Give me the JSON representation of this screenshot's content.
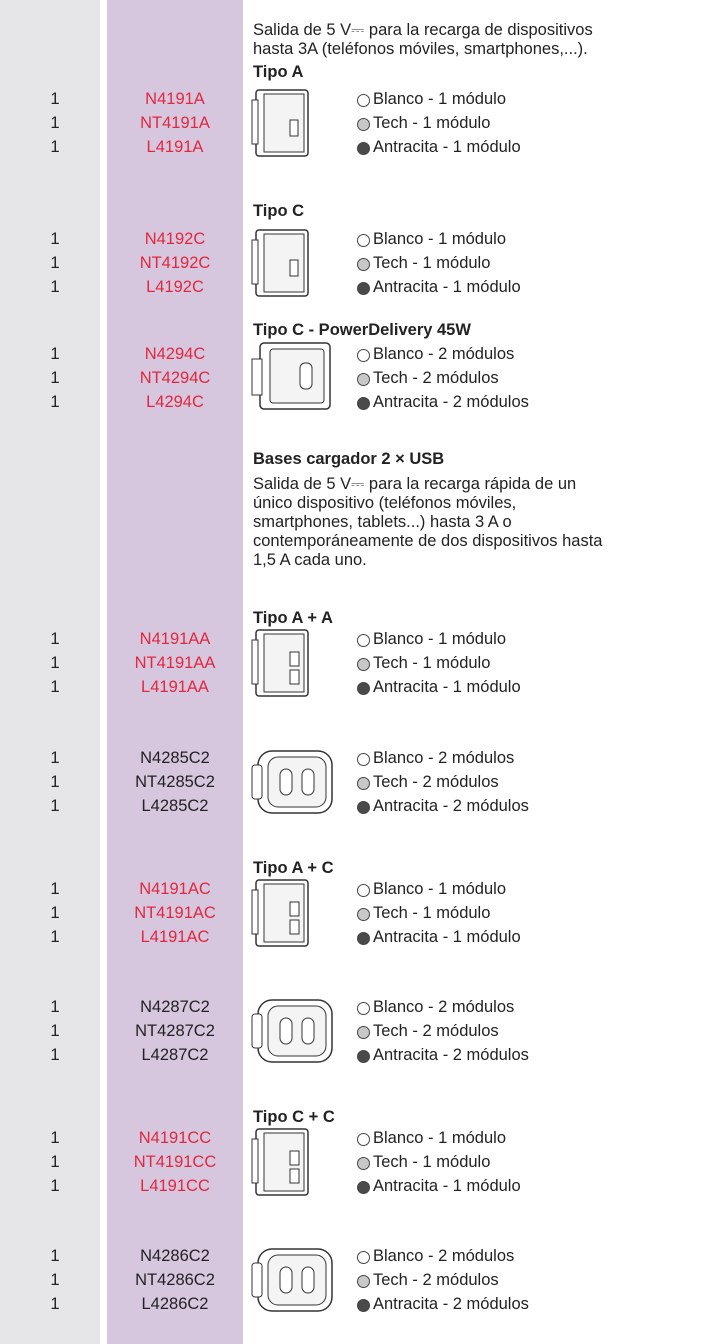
{
  "intro": [
    "Salida de 5 V⎓ para la recarga de dispositivos",
    "hasta 3A (teléfonos móviles, smartphones,...)."
  ],
  "sections": [
    {
      "heading": "Tipo A",
      "code_color": "#e2273f",
      "items": [
        {
          "qty": "1",
          "code": "N4191A",
          "label": "Blanco - 1 módulo"
        },
        {
          "qty": "1",
          "code": "NT4191A",
          "label": "Tech - 1 módulo"
        },
        {
          "qty": "1",
          "code": "L4191A",
          "label": "Antracita - 1 módulo"
        }
      ]
    },
    {
      "heading": "Tipo C",
      "code_color": "#e2273f",
      "items": [
        {
          "qty": "1",
          "code": "N4192C",
          "label": "Blanco - 1 módulo"
        },
        {
          "qty": "1",
          "code": "NT4192C",
          "label": "Tech - 1 módulo"
        },
        {
          "qty": "1",
          "code": "L4192C",
          "label": "Antracita - 1 módulo"
        }
      ]
    },
    {
      "heading": "Tipo C - PowerDelivery 45W",
      "code_color": "#e2273f",
      "items": [
        {
          "qty": "1",
          "code": "N4294C",
          "label": "Blanco - 2 módulos"
        },
        {
          "qty": "1",
          "code": "NT4294C",
          "label": "Tech - 2 módulos"
        },
        {
          "qty": "1",
          "code": "L4294C",
          "label": "Antracita - 2 módulos"
        }
      ]
    },
    {
      "heading": "Bases cargador 2 × USB",
      "note": [
        "Salida de 5 V⎓ para la recarga rápida de un",
        "único dispositivo (teléfonos móviles,",
        "smartphones, tablets...) hasta 3 A o",
        "contemporáneamente de dos dispositivos hasta",
        "1,5 A cada uno."
      ]
    },
    {
      "heading": "Tipo A + A",
      "code_color": "#e2273f",
      "items": [
        {
          "qty": "1",
          "code": "N4191AA",
          "label": "Blanco - 1 módulo"
        },
        {
          "qty": "1",
          "code": "NT4191AA",
          "label": "Tech - 1 módulo"
        },
        {
          "qty": "1",
          "code": "L4191AA",
          "label": "Antracita - 1 módulo"
        }
      ]
    },
    {
      "code_color": "#222222",
      "items": [
        {
          "qty": "1",
          "code": "N4285C2",
          "label": "Blanco - 2 módulos"
        },
        {
          "qty": "1",
          "code": "NT4285C2",
          "label": "Tech - 2 módulos"
        },
        {
          "qty": "1",
          "code": "L4285C2",
          "label": "Antracita - 2 módulos"
        }
      ]
    },
    {
      "heading": "Tipo A + C",
      "code_color": "#e2273f",
      "items": [
        {
          "qty": "1",
          "code": "N4191AC",
          "label": "Blanco - 1 módulo"
        },
        {
          "qty": "1",
          "code": "NT4191AC",
          "label": "Tech - 1 módulo"
        },
        {
          "qty": "1",
          "code": "L4191AC",
          "label": "Antracita - 1 módulo"
        }
      ]
    },
    {
      "code_color": "#222222",
      "items": [
        {
          "qty": "1",
          "code": "N4287C2",
          "label": "Blanco - 2 módulos"
        },
        {
          "qty": "1",
          "code": "NT4287C2",
          "label": "Tech - 2 módulos"
        },
        {
          "qty": "1",
          "code": "L4287C2",
          "label": "Antracita - 2 módulos"
        }
      ]
    },
    {
      "heading": "Tipo C + C",
      "code_color": "#e2273f",
      "items": [
        {
          "qty": "1",
          "code": "N4191CC",
          "label": "Blanco - 1 módulo"
        },
        {
          "qty": "1",
          "code": "NT4191CC",
          "label": "Tech - 1 módulo"
        },
        {
          "qty": "1",
          "code": "L4191CC",
          "label": "Antracita - 1 módulo"
        }
      ]
    },
    {
      "code_color": "#222222",
      "items": [
        {
          "qty": "1",
          "code": "N4286C2",
          "label": "Blanco - 2 módulos"
        },
        {
          "qty": "1",
          "code": "NT4286C2",
          "label": "Tech - 2 módulos"
        },
        {
          "qty": "1",
          "code": "L4286C2",
          "label": "Antracita - 2 módulos"
        }
      ]
    }
  ]
}
